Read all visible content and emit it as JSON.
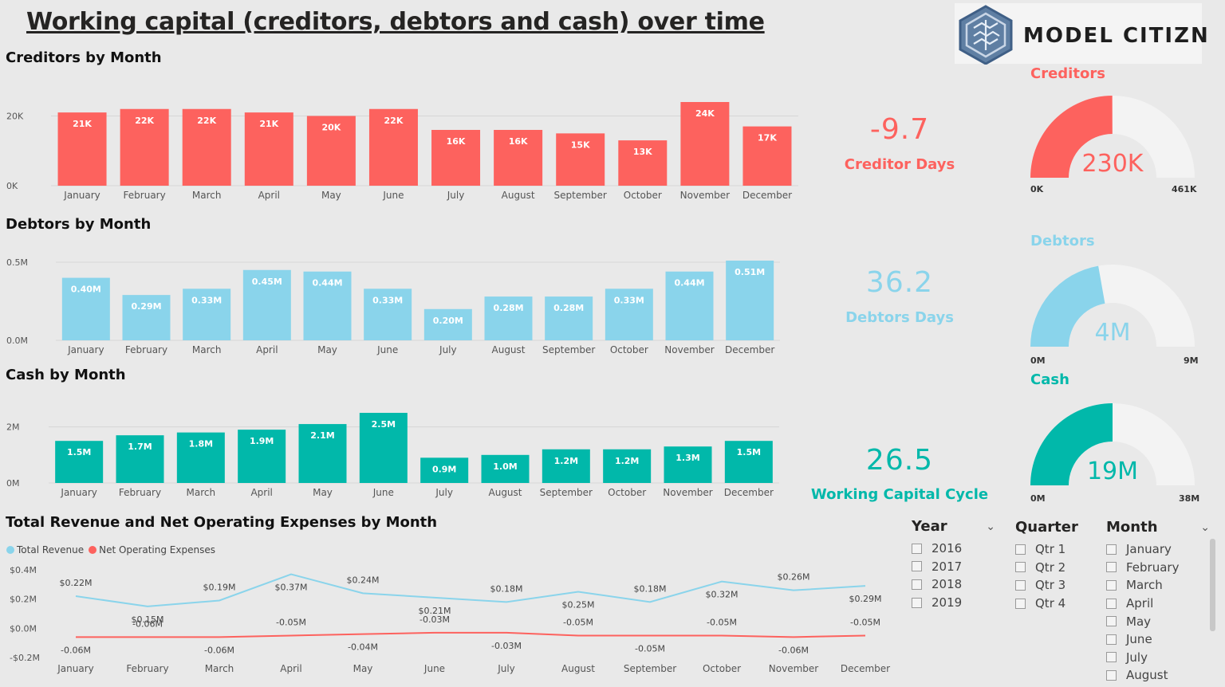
{
  "title": "Working capital (creditors, debtors and cash) over time",
  "logo": {
    "text": "MODEL CITIZN",
    "icon": "maze-hexagon-logo-icon"
  },
  "colors": {
    "creditors": "#fd625e",
    "debtors": "#8ad4eb",
    "cash": "#01b8aa",
    "gauge_track": "#f3f3f3",
    "revenue": "#8ad4eb",
    "expenses": "#fd625e"
  },
  "months": [
    "January",
    "February",
    "March",
    "April",
    "May",
    "June",
    "July",
    "August",
    "September",
    "October",
    "November",
    "December"
  ],
  "kpis": {
    "creditor_days": {
      "value": "-9.7",
      "label": "Creditor Days"
    },
    "debtors_days": {
      "value": "36.2",
      "label": "Debtors Days"
    },
    "working_capital_cycle": {
      "value": "26.5",
      "label": "Working Capital Cycle"
    }
  },
  "gauges": {
    "creditors": {
      "title": "Creditors",
      "value_label": "230K",
      "min_label": "0K",
      "max_label": "461K",
      "value": 230,
      "max": 461
    },
    "debtors": {
      "title": "Debtors",
      "value_label": "4M",
      "min_label": "0M",
      "max_label": "9M",
      "value": 4,
      "max": 9
    },
    "cash": {
      "title": "Cash",
      "value_label": "19M",
      "min_label": "0M",
      "max_label": "38M",
      "value": 19,
      "max": 38
    }
  },
  "slicers": {
    "year": {
      "title": "Year",
      "items": [
        "2016",
        "2017",
        "2018",
        "2019"
      ]
    },
    "quarter": {
      "title": "Quarter",
      "items": [
        "Qtr 1",
        "Qtr 2",
        "Qtr 3",
        "Qtr 4"
      ]
    },
    "month": {
      "title": "Month",
      "items": [
        "January",
        "February",
        "March",
        "April",
        "May",
        "June",
        "July",
        "August"
      ]
    }
  },
  "chart_data": [
    {
      "id": "creditors",
      "type": "bar",
      "title": "Creditors by Month",
      "categories": [
        "January",
        "February",
        "March",
        "April",
        "May",
        "June",
        "July",
        "August",
        "September",
        "October",
        "November",
        "December"
      ],
      "values": [
        21,
        22,
        22,
        21,
        20,
        22,
        16,
        16,
        15,
        13,
        24,
        17
      ],
      "data_labels": [
        "21K",
        "22K",
        "22K",
        "21K",
        "20K",
        "22K",
        "16K",
        "16K",
        "15K",
        "13K",
        "24K",
        "17K"
      ],
      "yticks": [
        0,
        20
      ],
      "ytick_labels": [
        "0K",
        "20K"
      ],
      "ylim": [
        0,
        24
      ],
      "unit": "K"
    },
    {
      "id": "debtors",
      "type": "bar",
      "title": "Debtors by Month",
      "categories": [
        "January",
        "February",
        "March",
        "April",
        "May",
        "June",
        "July",
        "August",
        "September",
        "October",
        "November",
        "December"
      ],
      "values": [
        0.4,
        0.29,
        0.33,
        0.45,
        0.44,
        0.33,
        0.2,
        0.28,
        0.28,
        0.33,
        0.44,
        0.51
      ],
      "data_labels": [
        "0.40M",
        "0.29M",
        "0.33M",
        "0.45M",
        "0.44M",
        "0.33M",
        "0.20M",
        "0.28M",
        "0.28M",
        "0.33M",
        "0.44M",
        "0.51M"
      ],
      "yticks": [
        0,
        0.5
      ],
      "ytick_labels": [
        "0.0M",
        "0.5M"
      ],
      "ylim": [
        0,
        0.51
      ],
      "unit": "M"
    },
    {
      "id": "cash",
      "type": "bar",
      "title": "Cash by Month",
      "categories": [
        "January",
        "February",
        "March",
        "April",
        "May",
        "June",
        "July",
        "August",
        "September",
        "October",
        "November",
        "December"
      ],
      "values": [
        1.5,
        1.7,
        1.8,
        1.9,
        2.1,
        2.5,
        0.9,
        1.0,
        1.2,
        1.2,
        1.3,
        1.5
      ],
      "data_labels": [
        "1.5M",
        "1.7M",
        "1.8M",
        "1.9M",
        "2.1M",
        "2.5M",
        "0.9M",
        "1.0M",
        "1.2M",
        "1.2M",
        "1.3M",
        "1.5M"
      ],
      "yticks": [
        0,
        2
      ],
      "ytick_labels": [
        "0M",
        "2M"
      ],
      "ylim": [
        0,
        2.5
      ],
      "unit": "M"
    },
    {
      "id": "revenue_expenses",
      "type": "line",
      "title": "Total Revenue and Net Operating Expenses by Month",
      "categories": [
        "January",
        "February",
        "March",
        "April",
        "May",
        "June",
        "July",
        "August",
        "September",
        "October",
        "November",
        "December"
      ],
      "series": [
        {
          "name": "Total Revenue",
          "values": [
            0.22,
            0.15,
            0.19,
            0.37,
            0.24,
            0.21,
            0.18,
            0.25,
            0.18,
            0.32,
            0.26,
            0.29
          ],
          "data_labels": [
            "$0.22M",
            "$0.15M",
            "$0.19M",
            "$0.37M",
            "$0.24M",
            "$0.21M",
            "$0.18M",
            "$0.25M",
            "$0.18M",
            "$0.32M",
            "$0.26M",
            "$0.29M"
          ]
        },
        {
          "name": "Net Operating Expenses",
          "values": [
            -0.06,
            -0.06,
            -0.06,
            -0.05,
            -0.04,
            -0.03,
            -0.03,
            -0.05,
            -0.05,
            -0.05,
            -0.06,
            -0.05
          ],
          "data_labels": [
            "-0.06M",
            "-0.06M",
            "-0.06M",
            "-0.05M",
            "-0.04M",
            "-0.03M",
            "-0.03M",
            "-0.05M",
            "-0.05M",
            "-0.05M",
            "-0.06M",
            "-0.05M"
          ]
        }
      ],
      "yticks": [
        -0.2,
        0,
        0.2,
        0.4
      ],
      "ytick_labels": [
        "-$0.2M",
        "$0.0M",
        "$0.2M",
        "$0.4M"
      ],
      "ylim": [
        -0.2,
        0.4
      ],
      "legend": "top-left"
    }
  ]
}
